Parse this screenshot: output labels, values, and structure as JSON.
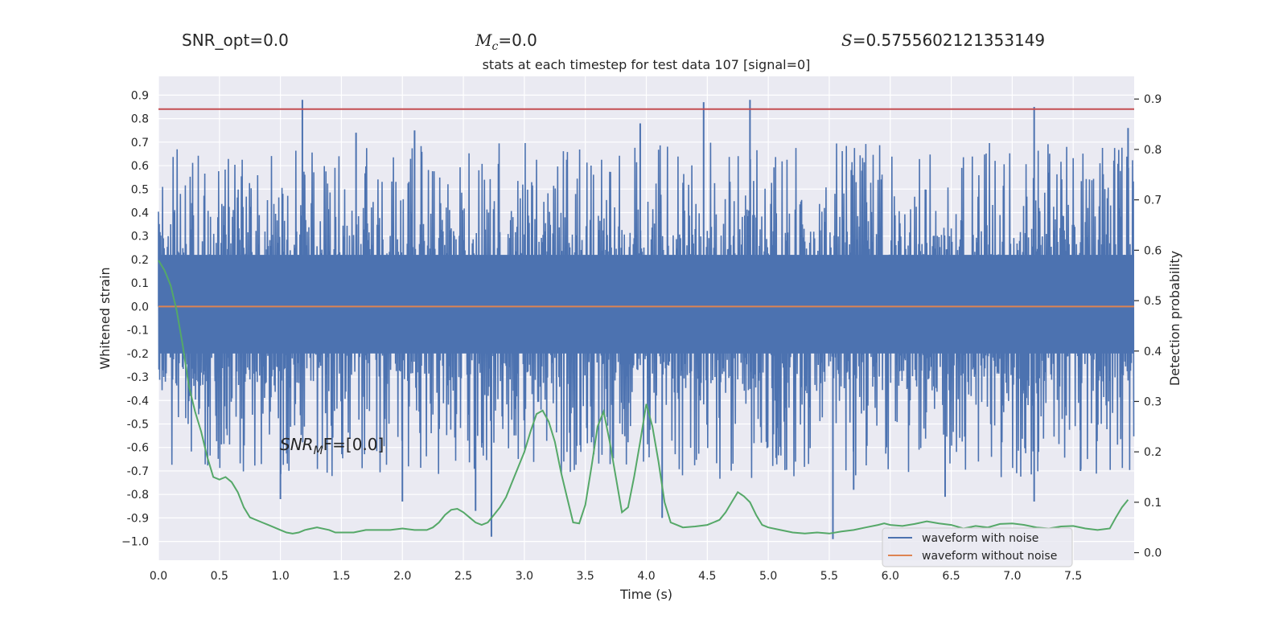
{
  "header": {
    "snr_opt_text": "SNR_opt=0.0",
    "mc_symbol": "M",
    "mc_sub": "c",
    "mc_value": "=0.0",
    "s_symbol": "S",
    "s_value": "=0.5755602121353149"
  },
  "chart_data": {
    "type": "line",
    "title": "stats at each timestep for test data 107 [signal=0]",
    "xlabel": "Time (s)",
    "ylabel": "Whitened strain",
    "y2label": "Detection probability",
    "xlim": [
      0.0,
      8.0
    ],
    "ylim": [
      -1.08,
      0.98
    ],
    "y2lim": [
      -0.015,
      0.945
    ],
    "xticks": [
      "0.0",
      "0.5",
      "1.0",
      "1.5",
      "2.0",
      "2.5",
      "3.0",
      "3.5",
      "4.0",
      "4.5",
      "5.0",
      "5.5",
      "6.0",
      "6.5",
      "7.0",
      "7.5"
    ],
    "xtick_values": [
      0.0,
      0.5,
      1.0,
      1.5,
      2.0,
      2.5,
      3.0,
      3.5,
      4.0,
      4.5,
      5.0,
      5.5,
      6.0,
      6.5,
      7.0,
      7.5
    ],
    "yticks": [
      "0.9",
      "0.8",
      "0.7",
      "0.6",
      "0.5",
      "0.4",
      "0.3",
      "0.2",
      "0.1",
      "0.0",
      "-0.1",
      "-0.2",
      "-0.3",
      "-0.4",
      "-0.5",
      "-0.6",
      "-0.7",
      "-0.8",
      "-0.9",
      "−1.0"
    ],
    "ytick_values": [
      0.9,
      0.8,
      0.7,
      0.6,
      0.5,
      0.4,
      0.3,
      0.2,
      0.1,
      0.0,
      -0.1,
      -0.2,
      -0.3,
      -0.4,
      -0.5,
      -0.6,
      -0.7,
      -0.8,
      -0.9,
      -1.0
    ],
    "y2ticks": [
      "0.9",
      "0.8",
      "0.7",
      "0.6",
      "0.5",
      "0.4",
      "0.3",
      "0.2",
      "0.1",
      "0.0"
    ],
    "y2tick_values": [
      0.9,
      0.8,
      0.7,
      0.6,
      0.5,
      0.4,
      0.3,
      0.2,
      0.1,
      0.0
    ],
    "threshold": 0.88,
    "grid": true,
    "legend_position": "lower-right",
    "annotation": {
      "base": "SNR",
      "sub": "M",
      "rest": "F=[0.0]"
    },
    "series": [
      {
        "name": "waveform with noise",
        "color": "#4c72b0",
        "type": "noise",
        "x_range": [
          0.0,
          8.0
        ],
        "core_amplitude": [
          -0.4,
          0.5
        ],
        "peak_values_top": [
          0.88,
          0.88,
          0.87,
          0.88,
          0.85,
          0.85,
          0.84,
          0.78,
          0.75,
          0.74
        ],
        "peak_values_bottom": [
          -0.98,
          -0.99,
          -0.93,
          -0.89,
          -0.85,
          -0.83,
          -0.82,
          -0.81,
          -0.78,
          -0.74
        ]
      },
      {
        "name": "waveform without noise",
        "color": "#dd8452",
        "type": "line",
        "y": 0.0
      },
      {
        "name": "detection probability",
        "color": "#55a868",
        "axis": "right",
        "x": [
          0.0,
          0.05,
          0.1,
          0.15,
          0.2,
          0.25,
          0.3,
          0.35,
          0.4,
          0.45,
          0.5,
          0.55,
          0.6,
          0.65,
          0.7,
          0.75,
          0.85,
          0.9,
          0.95,
          1.0,
          1.05,
          1.1,
          1.15,
          1.2,
          1.3,
          1.4,
          1.45,
          1.5,
          1.55,
          1.6,
          1.7,
          1.8,
          1.9,
          2.0,
          2.1,
          2.2,
          2.25,
          2.3,
          2.35,
          2.4,
          2.45,
          2.5,
          2.55,
          2.6,
          2.65,
          2.7,
          2.75,
          2.8,
          2.85,
          2.9,
          2.95,
          3.0,
          3.05,
          3.1,
          3.15,
          3.2,
          3.25,
          3.3,
          3.35,
          3.4,
          3.45,
          3.5,
          3.55,
          3.6,
          3.65,
          3.7,
          3.75,
          3.8,
          3.85,
          3.9,
          3.95,
          4.0,
          4.05,
          4.1,
          4.15,
          4.2,
          4.25,
          4.3,
          4.4,
          4.5,
          4.55,
          4.6,
          4.65,
          4.7,
          4.75,
          4.8,
          4.85,
          4.9,
          4.95,
          5.0,
          5.1,
          5.2,
          5.3,
          5.4,
          5.5,
          5.6,
          5.7,
          5.8,
          5.9,
          5.95,
          6.0,
          6.1,
          6.2,
          6.3,
          6.4,
          6.5,
          6.6,
          6.7,
          6.8,
          6.9,
          7.0,
          7.1,
          7.2,
          7.3,
          7.4,
          7.5,
          7.6,
          7.7,
          7.8,
          7.85,
          7.9,
          7.95
        ],
        "y": [
          0.58,
          0.56,
          0.53,
          0.48,
          0.41,
          0.33,
          0.28,
          0.24,
          0.19,
          0.15,
          0.145,
          0.15,
          0.14,
          0.12,
          0.09,
          0.07,
          0.06,
          0.055,
          0.05,
          0.045,
          0.04,
          0.038,
          0.04,
          0.045,
          0.05,
          0.045,
          0.04,
          0.04,
          0.04,
          0.04,
          0.045,
          0.045,
          0.045,
          0.048,
          0.045,
          0.045,
          0.05,
          0.06,
          0.075,
          0.085,
          0.087,
          0.08,
          0.07,
          0.06,
          0.055,
          0.06,
          0.075,
          0.09,
          0.11,
          0.14,
          0.17,
          0.2,
          0.24,
          0.275,
          0.282,
          0.26,
          0.22,
          0.16,
          0.11,
          0.06,
          0.058,
          0.095,
          0.17,
          0.25,
          0.28,
          0.22,
          0.15,
          0.08,
          0.09,
          0.15,
          0.22,
          0.295,
          0.25,
          0.18,
          0.1,
          0.06,
          0.055,
          0.05,
          0.052,
          0.055,
          0.06,
          0.065,
          0.08,
          0.1,
          0.12,
          0.112,
          0.1,
          0.075,
          0.055,
          0.05,
          0.045,
          0.04,
          0.038,
          0.04,
          0.038,
          0.042,
          0.045,
          0.05,
          0.055,
          0.058,
          0.055,
          0.053,
          0.057,
          0.062,
          0.058,
          0.055,
          0.048,
          0.053,
          0.05,
          0.057,
          0.058,
          0.055,
          0.05,
          0.048,
          0.052,
          0.053,
          0.048,
          0.045,
          0.048,
          0.07,
          0.09,
          0.105
        ]
      }
    ]
  }
}
